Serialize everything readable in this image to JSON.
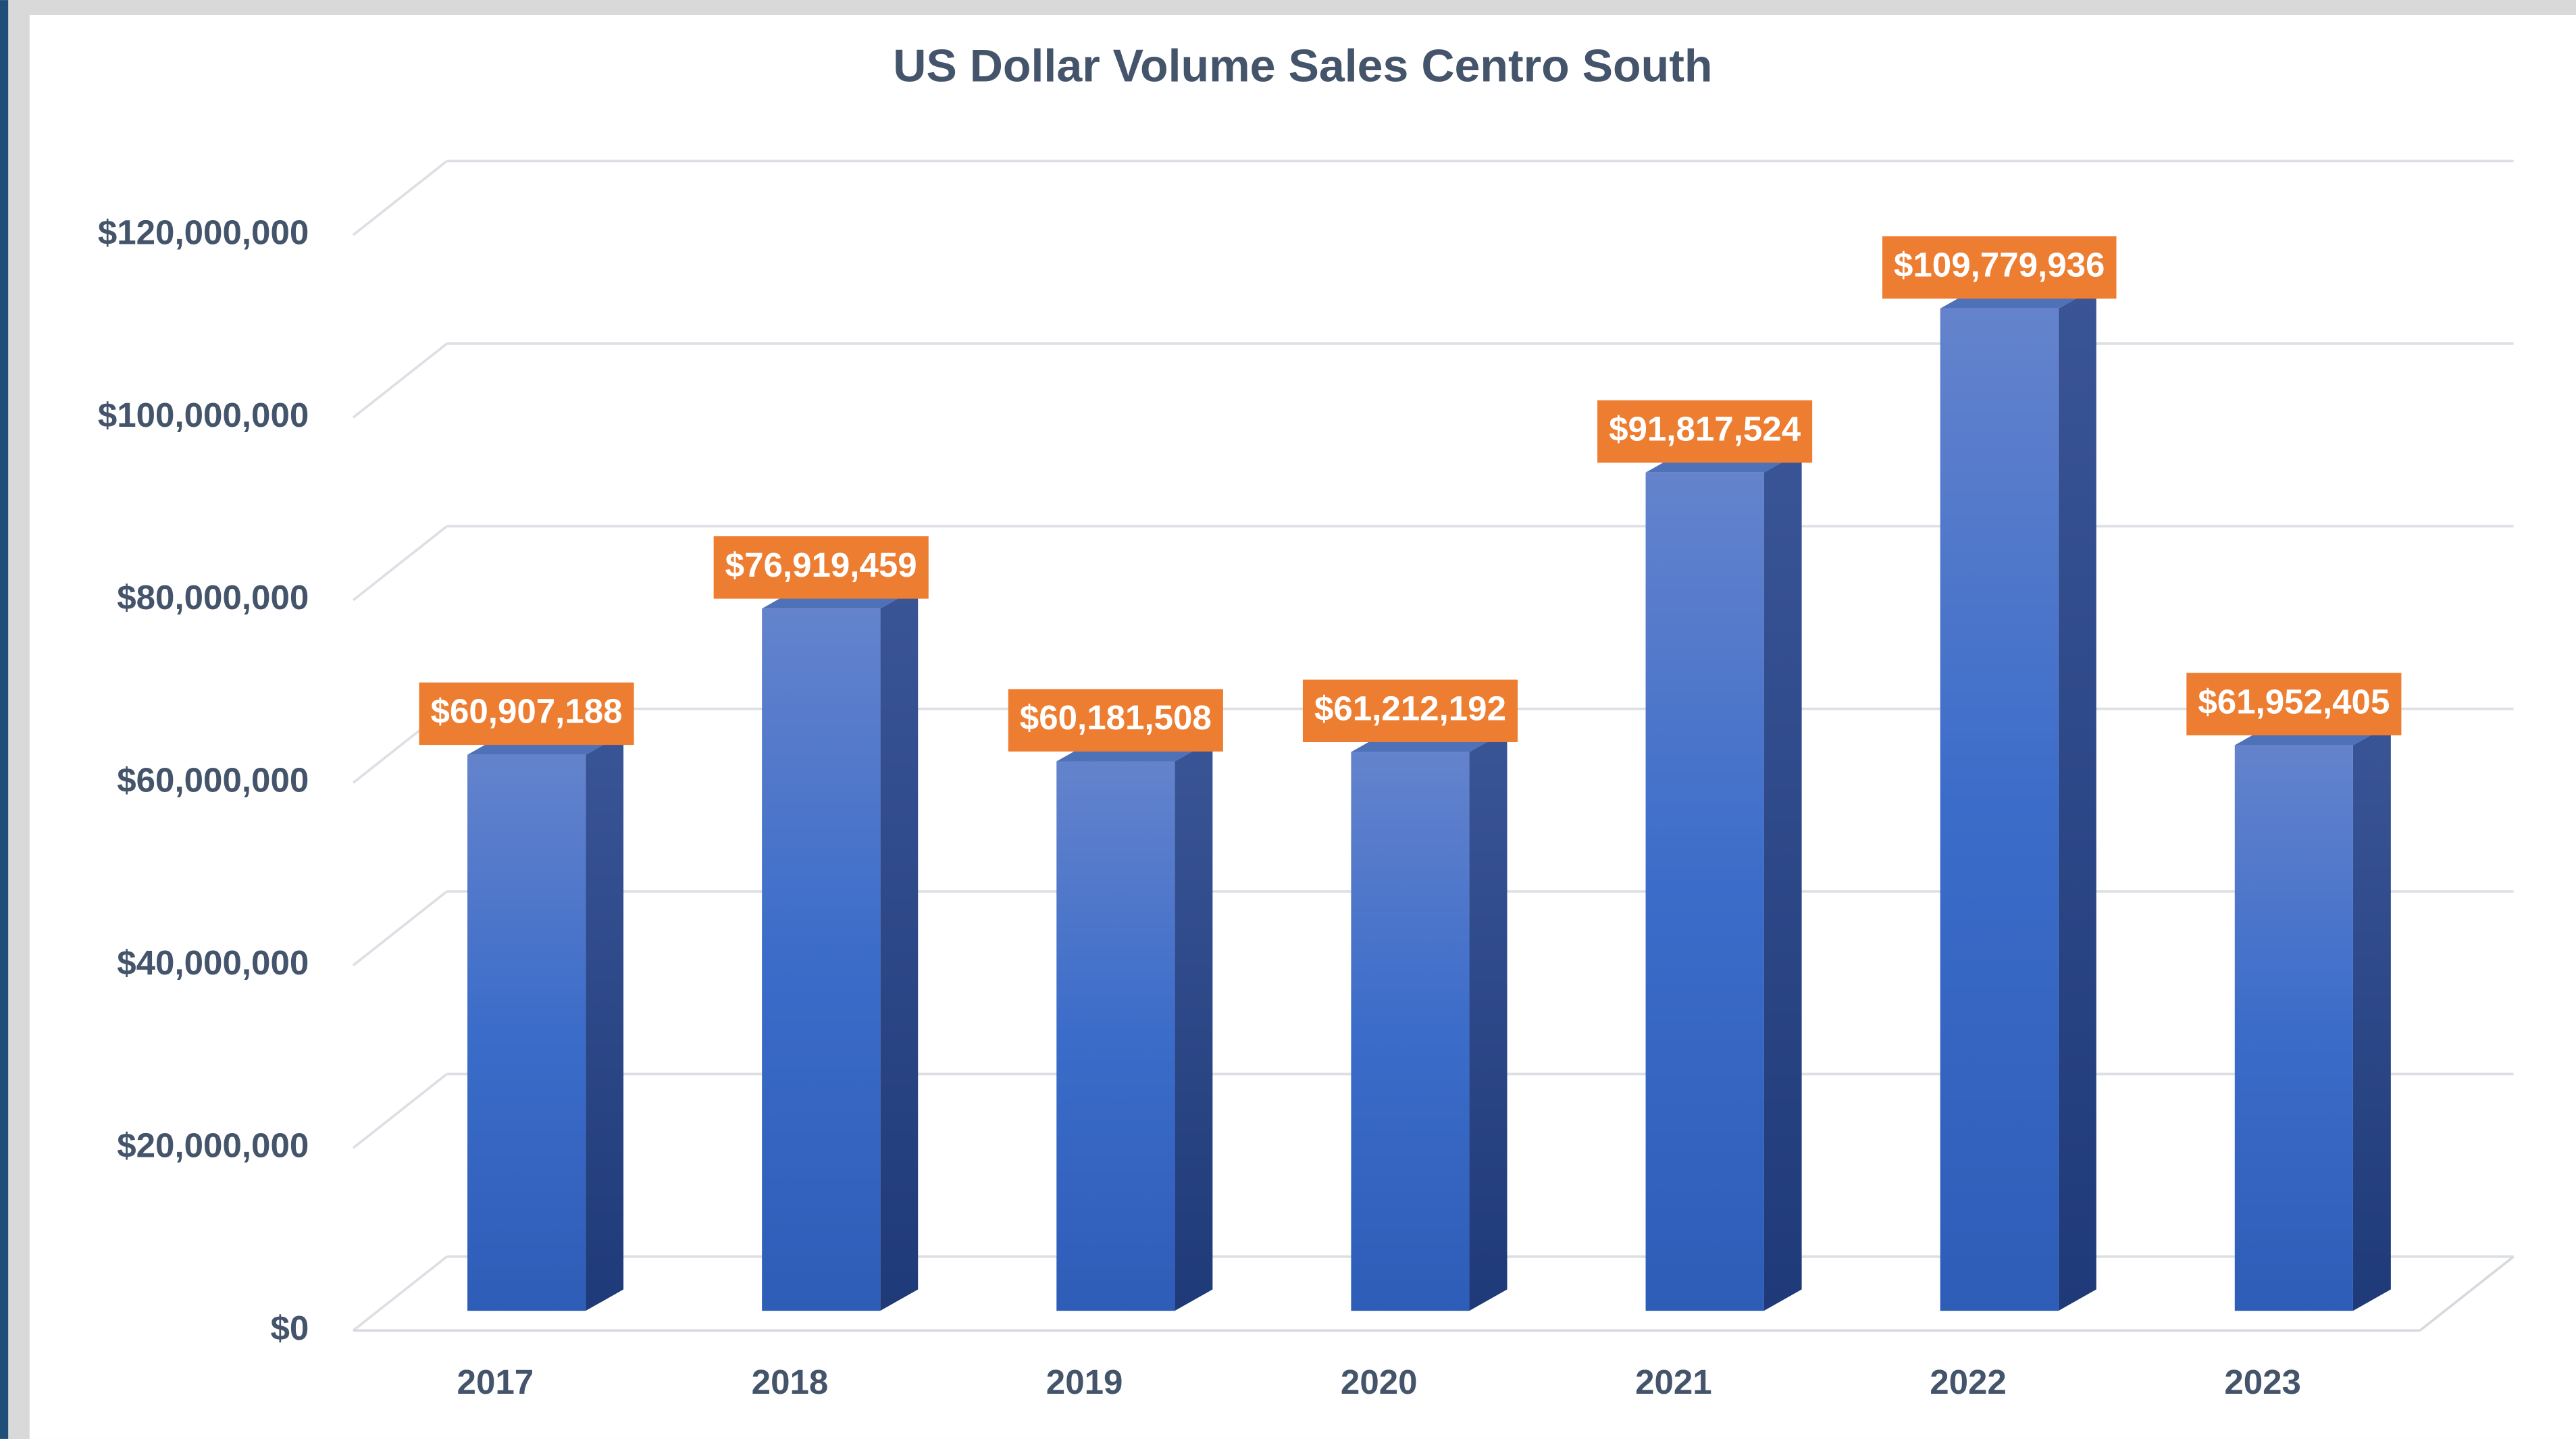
{
  "chart_data": {
    "type": "bar",
    "title": "US Dollar Volume Sales Centro South",
    "categories": [
      "2017",
      "2018",
      "2019",
      "2020",
      "2021",
      "2022",
      "2023"
    ],
    "values": [
      60907188,
      76919459,
      60181508,
      61212192,
      91817524,
      109779936,
      61952405
    ],
    "value_labels": [
      "$60,907,188",
      "$76,919,459",
      "$60,181,508",
      "$61,212,192",
      "$91,817,524",
      "$109,779,936",
      "$61,952,405"
    ],
    "color": "#4472c4",
    "label_color": "#ed7d31",
    "ylim": [
      0,
      120000000
    ],
    "yticks": [
      {
        "value": 0,
        "label": "$0"
      },
      {
        "value": 20000000,
        "label": "$20,000,000"
      },
      {
        "value": 40000000,
        "label": "$40,000,000"
      },
      {
        "value": 60000000,
        "label": "$60,000,000"
      },
      {
        "value": 80000000,
        "label": "$80,000,000"
      },
      {
        "value": 100000000,
        "label": "$100,000,000"
      },
      {
        "value": 120000000,
        "label": "$120,000,000"
      }
    ],
    "grid": true
  }
}
